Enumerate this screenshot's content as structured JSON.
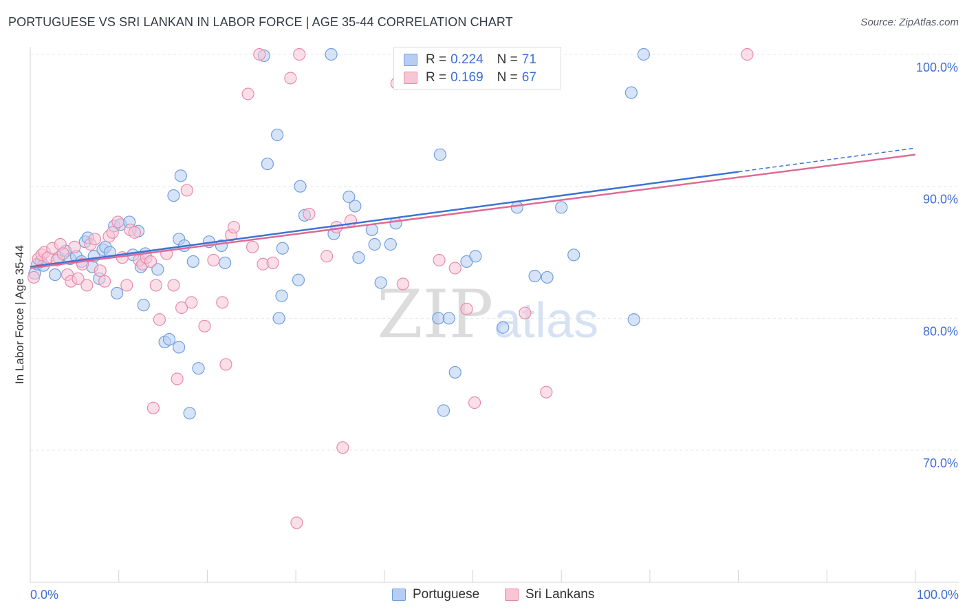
{
  "title": "PORTUGUESE VS SRI LANKAN IN LABOR FORCE | AGE 35-44 CORRELATION CHART",
  "source": "Source: ZipAtlas.com",
  "watermark": {
    "zip": "ZIP",
    "atlas": "atlas"
  },
  "legend": {
    "r_label": "R =",
    "n_label": "N =",
    "rows": [
      {
        "r": "0.224",
        "n": "71",
        "color": "#6f9ee0",
        "fill": "#b6cef3"
      },
      {
        "r": "0.169",
        "n": "67",
        "color": "#e98aa8",
        "fill": "#f8c5d5"
      }
    ]
  },
  "bottom_legend": [
    "Portuguese",
    "Sri Lankans"
  ],
  "chart_data": {
    "type": "scatter",
    "title": "PORTUGUESE VS SRI LANKAN IN LABOR FORCE | AGE 35-44 CORRELATION CHART",
    "xlabel": "",
    "ylabel": "In Labor Force | Age 35-44",
    "xlim": [
      0,
      100
    ],
    "ylim": [
      60,
      103
    ],
    "x_tick_labels": [
      "0.0%",
      "100.0%"
    ],
    "y_ticks": [
      70,
      80,
      90,
      100
    ],
    "y_tick_labels": [
      "70.0%",
      "80.0%",
      "90.0%",
      "100.0%"
    ],
    "grid": true,
    "series": [
      {
        "name": "Portuguese",
        "color": "#3b73d4",
        "fill": "#b6cef3",
        "stroke": "#6f9ee0",
        "trend": {
          "x0": 0,
          "y0": 83.9,
          "x1": 80,
          "y1": 91.1,
          "dash_to": 100,
          "dash_y": 92.9
        },
        "points": [
          [
            0.5,
            83.4
          ],
          [
            0.8,
            84.1
          ],
          [
            1.2,
            84.3
          ],
          [
            1.5,
            84.0
          ],
          [
            2.8,
            83.3
          ],
          [
            3.2,
            84.6
          ],
          [
            4.0,
            85.1
          ],
          [
            4.5,
            84.5
          ],
          [
            5.2,
            84.7
          ],
          [
            5.8,
            84.3
          ],
          [
            6.2,
            85.8
          ],
          [
            6.5,
            86.1
          ],
          [
            7.0,
            83.9
          ],
          [
            7.2,
            84.7
          ],
          [
            7.8,
            83.0
          ],
          [
            8.2,
            85.2
          ],
          [
            8.5,
            85.4
          ],
          [
            9.0,
            85.0
          ],
          [
            9.5,
            87.0
          ],
          [
            10.2,
            87.1
          ],
          [
            11.2,
            87.3
          ],
          [
            11.6,
            84.8
          ],
          [
            12.2,
            86.6
          ],
          [
            12.5,
            83.9
          ],
          [
            13.0,
            84.9
          ],
          [
            14.4,
            83.7
          ],
          [
            15.2,
            78.2
          ],
          [
            15.7,
            78.4
          ],
          [
            16.8,
            77.8
          ],
          [
            18.0,
            72.8
          ],
          [
            12.8,
            81.0
          ],
          [
            9.8,
            81.9
          ],
          [
            16.2,
            89.3
          ],
          [
            17.0,
            90.8
          ],
          [
            16.8,
            86.0
          ],
          [
            17.4,
            85.5
          ],
          [
            18.4,
            84.3
          ],
          [
            19.0,
            76.2
          ],
          [
            20.2,
            85.8
          ],
          [
            21.6,
            85.5
          ],
          [
            22.0,
            84.2
          ],
          [
            26.4,
            99.9
          ],
          [
            26.8,
            91.7
          ],
          [
            27.9,
            93.9
          ],
          [
            28.1,
            80.0
          ],
          [
            28.4,
            81.7
          ],
          [
            28.5,
            85.3
          ],
          [
            30.3,
            82.9
          ],
          [
            30.5,
            90.0
          ],
          [
            31.0,
            87.8
          ],
          [
            34.0,
            100.0
          ],
          [
            34.3,
            86.4
          ],
          [
            36.0,
            89.2
          ],
          [
            36.7,
            88.5
          ],
          [
            37.1,
            84.6
          ],
          [
            38.6,
            86.7
          ],
          [
            38.9,
            85.6
          ],
          [
            39.6,
            82.7
          ],
          [
            40.7,
            85.6
          ],
          [
            41.3,
            87.2
          ],
          [
            43.0,
            100.0
          ],
          [
            46.1,
            80.0
          ],
          [
            46.7,
            73.0
          ],
          [
            46.3,
            92.4
          ],
          [
            47.3,
            80.0
          ],
          [
            48.0,
            75.9
          ],
          [
            49.3,
            84.3
          ],
          [
            50.3,
            84.7
          ],
          [
            53.4,
            79.3
          ],
          [
            55.0,
            88.4
          ],
          [
            57.0,
            83.2
          ],
          [
            58.4,
            83.1
          ],
          [
            60.0,
            88.4
          ],
          [
            61.4,
            84.8
          ],
          [
            67.9,
            97.1
          ],
          [
            68.2,
            79.9
          ],
          [
            69.3,
            100.0
          ]
        ]
      },
      {
        "name": "Sri Lankans",
        "color": "#e06a95",
        "fill": "#f8c5d5",
        "stroke": "#e98aa8",
        "trend": {
          "x0": 0,
          "y0": 83.8,
          "x1": 100,
          "y1": 92.4
        },
        "points": [
          [
            0.4,
            83.1
          ],
          [
            0.9,
            84.5
          ],
          [
            1.3,
            84.8
          ],
          [
            1.6,
            85.0
          ],
          [
            2.0,
            84.6
          ],
          [
            2.5,
            85.3
          ],
          [
            3.0,
            84.4
          ],
          [
            3.4,
            85.6
          ],
          [
            3.7,
            84.9
          ],
          [
            4.2,
            83.3
          ],
          [
            4.6,
            82.8
          ],
          [
            5.0,
            85.4
          ],
          [
            5.4,
            83.0
          ],
          [
            5.9,
            84.1
          ],
          [
            6.4,
            82.5
          ],
          [
            6.8,
            85.6
          ],
          [
            7.3,
            86.0
          ],
          [
            7.9,
            83.6
          ],
          [
            8.4,
            82.8
          ],
          [
            8.9,
            86.2
          ],
          [
            9.3,
            86.5
          ],
          [
            9.9,
            87.3
          ],
          [
            10.4,
            84.6
          ],
          [
            10.9,
            82.5
          ],
          [
            11.3,
            86.7
          ],
          [
            11.8,
            86.5
          ],
          [
            12.3,
            84.4
          ],
          [
            12.7,
            84.1
          ],
          [
            13.1,
            84.6
          ],
          [
            13.6,
            84.3
          ],
          [
            13.9,
            73.2
          ],
          [
            14.2,
            82.5
          ],
          [
            14.6,
            79.9
          ],
          [
            15.4,
            84.9
          ],
          [
            16.2,
            82.5
          ],
          [
            16.6,
            75.4
          ],
          [
            17.1,
            80.8
          ],
          [
            17.7,
            89.7
          ],
          [
            18.2,
            81.2
          ],
          [
            19.7,
            79.4
          ],
          [
            20.7,
            84.4
          ],
          [
            21.7,
            81.2
          ],
          [
            22.1,
            76.5
          ],
          [
            22.7,
            86.3
          ],
          [
            23.0,
            86.9
          ],
          [
            24.6,
            97.0
          ],
          [
            25.1,
            85.4
          ],
          [
            25.9,
            100.0
          ],
          [
            26.3,
            84.1
          ],
          [
            27.4,
            84.2
          ],
          [
            29.4,
            98.2
          ],
          [
            30.1,
            64.5
          ],
          [
            30.4,
            100.0
          ],
          [
            31.5,
            87.9
          ],
          [
            33.5,
            84.7
          ],
          [
            34.6,
            86.9
          ],
          [
            35.3,
            70.2
          ],
          [
            36.2,
            87.4
          ],
          [
            41.4,
            97.8
          ],
          [
            42.1,
            82.6
          ],
          [
            43.1,
            100.0
          ],
          [
            46.2,
            84.4
          ],
          [
            48.0,
            83.8
          ],
          [
            49.3,
            80.7
          ],
          [
            50.2,
            73.6
          ],
          [
            55.9,
            80.4
          ],
          [
            58.3,
            74.4
          ],
          [
            59.2,
            100.0
          ],
          [
            81.0,
            100.0
          ]
        ]
      }
    ]
  }
}
